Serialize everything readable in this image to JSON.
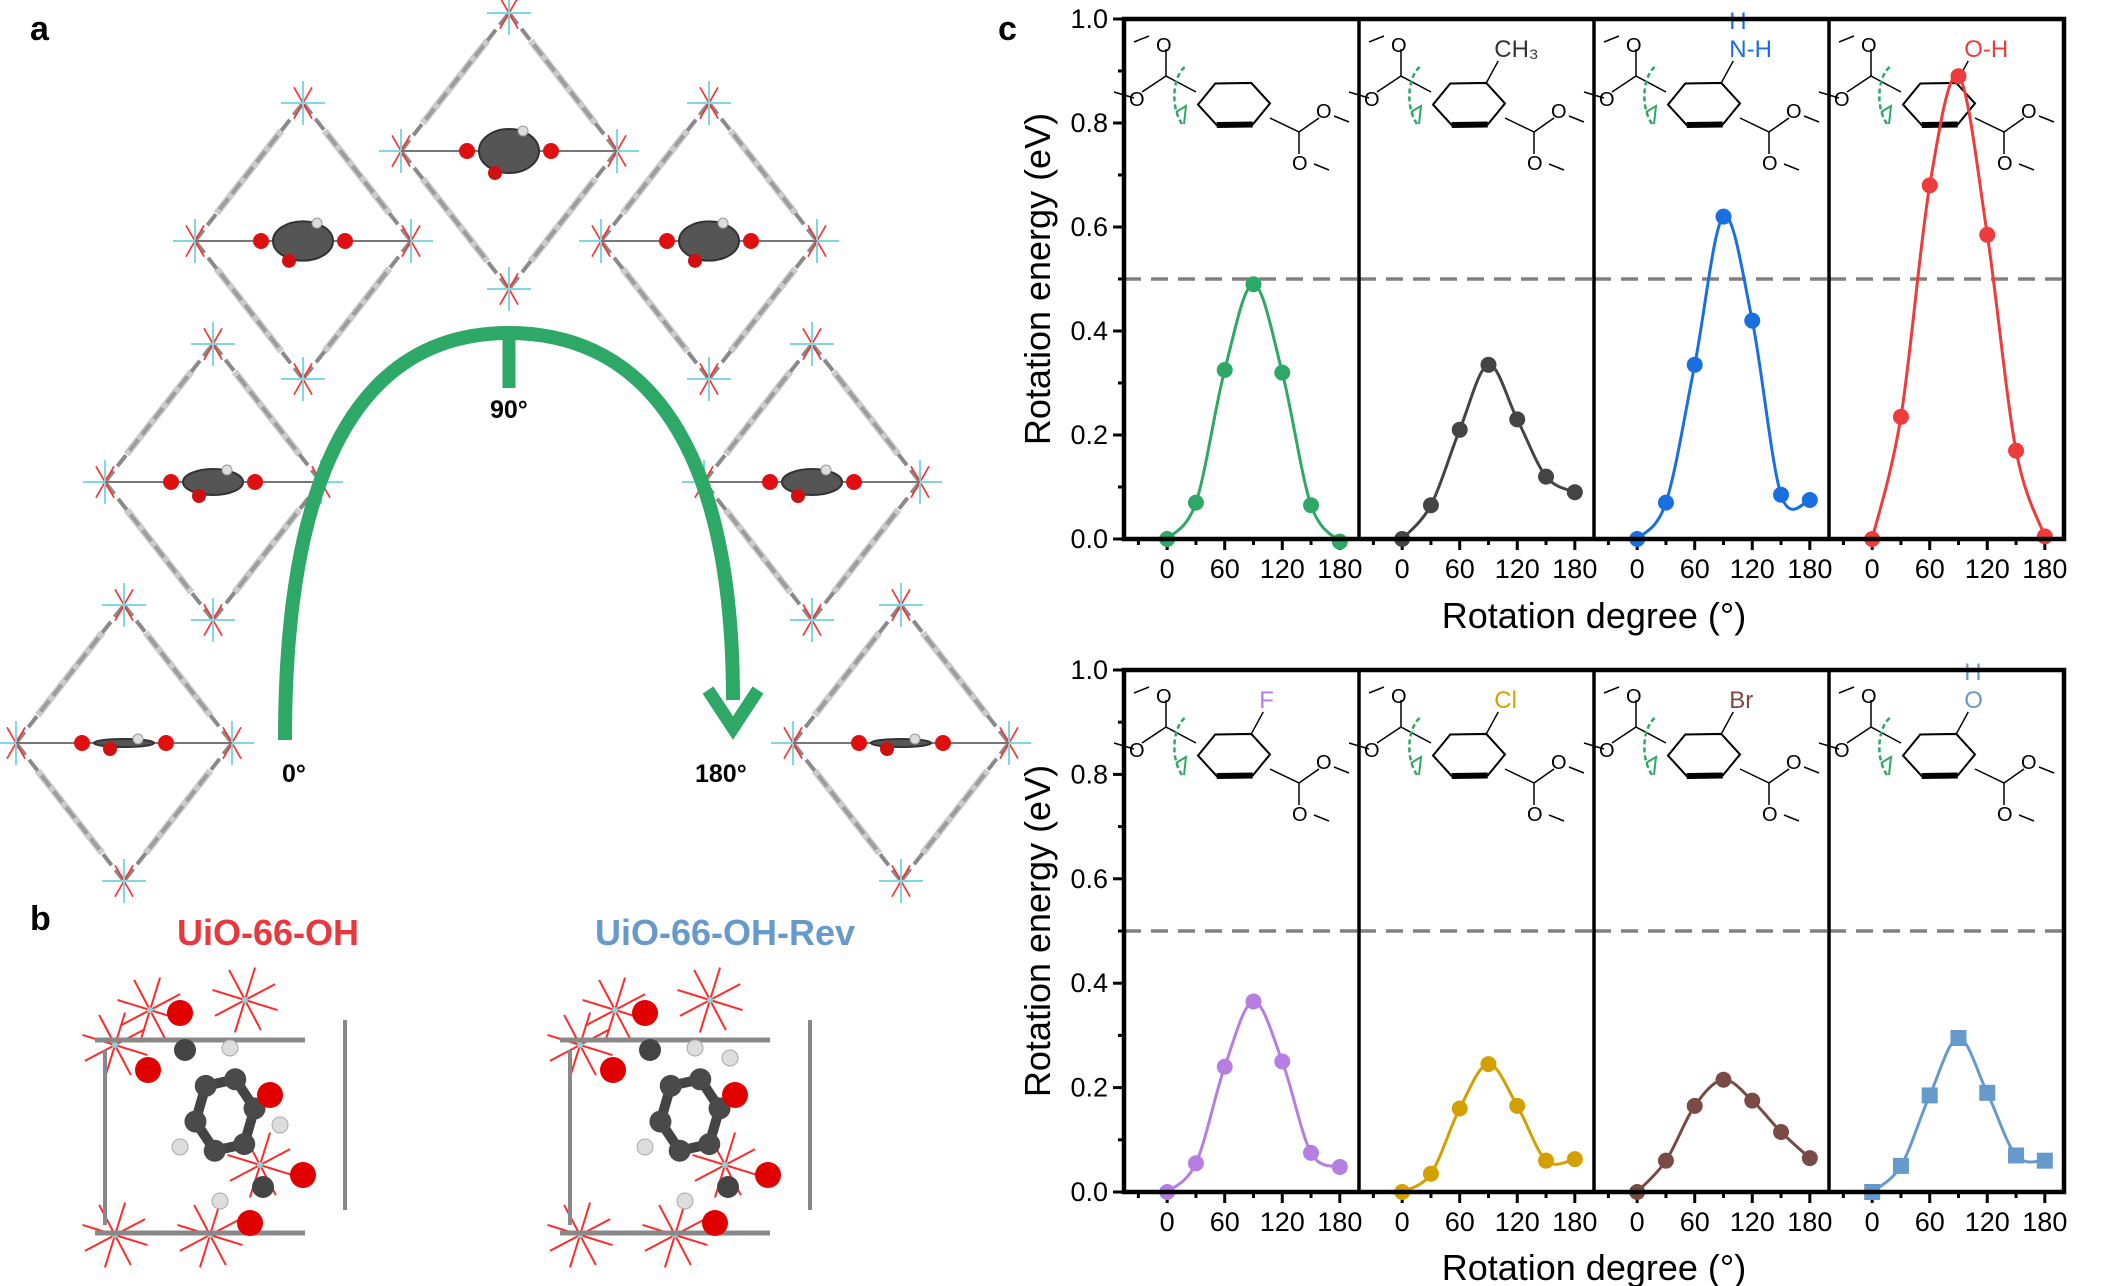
{
  "panel_labels": {
    "a": "a",
    "b": "b",
    "c": "c"
  },
  "panel_a": {
    "arc_color": "#2ea866",
    "angle_labels": {
      "start": "0°",
      "middle": "90°",
      "end": "180°"
    },
    "framework_angles_deg": [
      0,
      30,
      60,
      90,
      120,
      150,
      180
    ]
  },
  "panel_b": {
    "left_title": "UiO-66-OH",
    "left_title_color": "#e8373d",
    "right_title": "UiO-66-OH-Rev",
    "right_title_color": "#6699cc"
  },
  "chart_data": [
    {
      "type": "line",
      "ylabel": "Rotation energy (eV)",
      "xlabel": "Rotation degree (°)",
      "ylim": [
        0.0,
        1.0
      ],
      "xlim": [
        -45,
        200
      ],
      "yticks": [
        "0.0",
        "0.2",
        "0.4",
        "0.6",
        "0.8",
        "1.0"
      ],
      "xticks": [
        "0",
        "60",
        "120",
        "180"
      ],
      "reference_line": {
        "y": 0.5,
        "style": "dashed",
        "color": "#808080"
      },
      "grid": false,
      "panels": [
        {
          "substituent": "",
          "substituent_color": "#000000",
          "color": "#2ea866",
          "marker": "circle",
          "x": [
            0,
            30,
            60,
            90,
            120,
            150,
            180
          ],
          "y": [
            0.0,
            0.07,
            0.325,
            0.49,
            0.32,
            0.065,
            -0.005
          ]
        },
        {
          "substituent": "CH₃",
          "substituent_color": "#333333",
          "color": "#444444",
          "marker": "circle",
          "x": [
            0,
            30,
            60,
            90,
            120,
            150,
            180
          ],
          "y": [
            0.0,
            0.065,
            0.21,
            0.335,
            0.23,
            0.12,
            0.09
          ]
        },
        {
          "substituent": "N-H",
          "substituent_top": "H",
          "substituent_color": "#1a6fe0",
          "color": "#1a6fe0",
          "marker": "circle",
          "x": [
            0,
            30,
            60,
            90,
            120,
            150,
            180
          ],
          "y": [
            0.0,
            0.07,
            0.335,
            0.62,
            0.42,
            0.085,
            0.075
          ]
        },
        {
          "substituent": "O-H",
          "substituent_color": "#ee3b3b",
          "color": "#ee3b3b",
          "marker": "circle",
          "x": [
            0,
            30,
            60,
            90,
            120,
            150,
            180
          ],
          "y": [
            0.0,
            0.235,
            0.68,
            0.89,
            0.585,
            0.17,
            0.005
          ]
        }
      ]
    },
    {
      "type": "line",
      "ylabel": "Rotation energy (eV)",
      "xlabel": "Rotation degree (°)",
      "ylim": [
        0.0,
        1.0
      ],
      "xlim": [
        -45,
        200
      ],
      "yticks": [
        "0.0",
        "0.2",
        "0.4",
        "0.6",
        "0.8",
        "1.0"
      ],
      "xticks": [
        "0",
        "60",
        "120",
        "180"
      ],
      "reference_line": {
        "y": 0.5,
        "style": "dashed",
        "color": "#808080"
      },
      "grid": false,
      "panels": [
        {
          "substituent": "F",
          "substituent_color": "#b57ee0",
          "color": "#b57ee0",
          "marker": "circle",
          "x": [
            0,
            30,
            60,
            90,
            120,
            150,
            180
          ],
          "y": [
            0.0,
            0.055,
            0.24,
            0.365,
            0.25,
            0.075,
            0.048
          ]
        },
        {
          "substituent": "Cl",
          "substituent_color": "#d4a000",
          "color": "#d4a000",
          "marker": "circle",
          "x": [
            0,
            30,
            60,
            90,
            120,
            150,
            180
          ],
          "y": [
            0.0,
            0.035,
            0.16,
            0.245,
            0.165,
            0.06,
            0.063
          ]
        },
        {
          "substituent": "Br",
          "substituent_color": "#7a4a45",
          "color": "#7a4a45",
          "marker": "circle",
          "x": [
            0,
            30,
            60,
            90,
            120,
            150,
            180
          ],
          "y": [
            0.0,
            0.06,
            0.165,
            0.215,
            0.175,
            0.115,
            0.065
          ]
        },
        {
          "substituent": "O",
          "substituent_top": "H",
          "substituent_color": "#6699cc",
          "color": "#6699cc",
          "marker": "square",
          "x": [
            0,
            30,
            60,
            90,
            120,
            150,
            180
          ],
          "y": [
            0.0,
            0.05,
            0.185,
            0.295,
            0.19,
            0.07,
            0.06
          ]
        }
      ]
    }
  ],
  "molecule_atom_label": "O"
}
